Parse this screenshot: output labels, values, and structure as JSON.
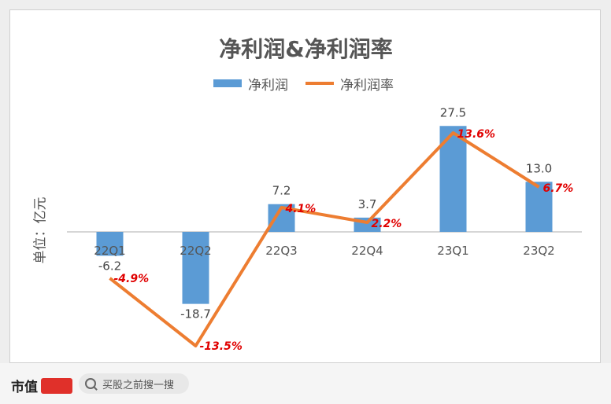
{
  "chart_data": {
    "type": "bar+line",
    "title": "净利润&净利润率",
    "ylabel": "单位：亿元",
    "categories": [
      "22Q1",
      "22Q2",
      "22Q3",
      "22Q4",
      "23Q1",
      "23Q2"
    ],
    "series": [
      {
        "name": "净利润",
        "type": "bar",
        "values": [
          -6.2,
          -18.7,
          7.2,
          3.7,
          27.5,
          13.0
        ],
        "labels": [
          "-6.2",
          "-18.7",
          "7.2",
          "3.7",
          "27.5",
          "13.0"
        ],
        "color": "#5b9bd5"
      },
      {
        "name": "净利润率",
        "type": "line",
        "values": [
          -4.9,
          -13.5,
          4.1,
          2.2,
          13.6,
          6.7
        ],
        "labels": [
          "-4.9%",
          "-13.5%",
          "4.1%",
          "2.2%",
          "13.6%",
          "6.7%"
        ],
        "color": "#ed7d31",
        "label_color": "#e00000"
      }
    ],
    "legend_position": "top-center",
    "grid": false
  },
  "footer": {
    "brand": "市值",
    "search_placeholder": "买股之前搜一搜",
    "search_icon": "search-icon"
  }
}
